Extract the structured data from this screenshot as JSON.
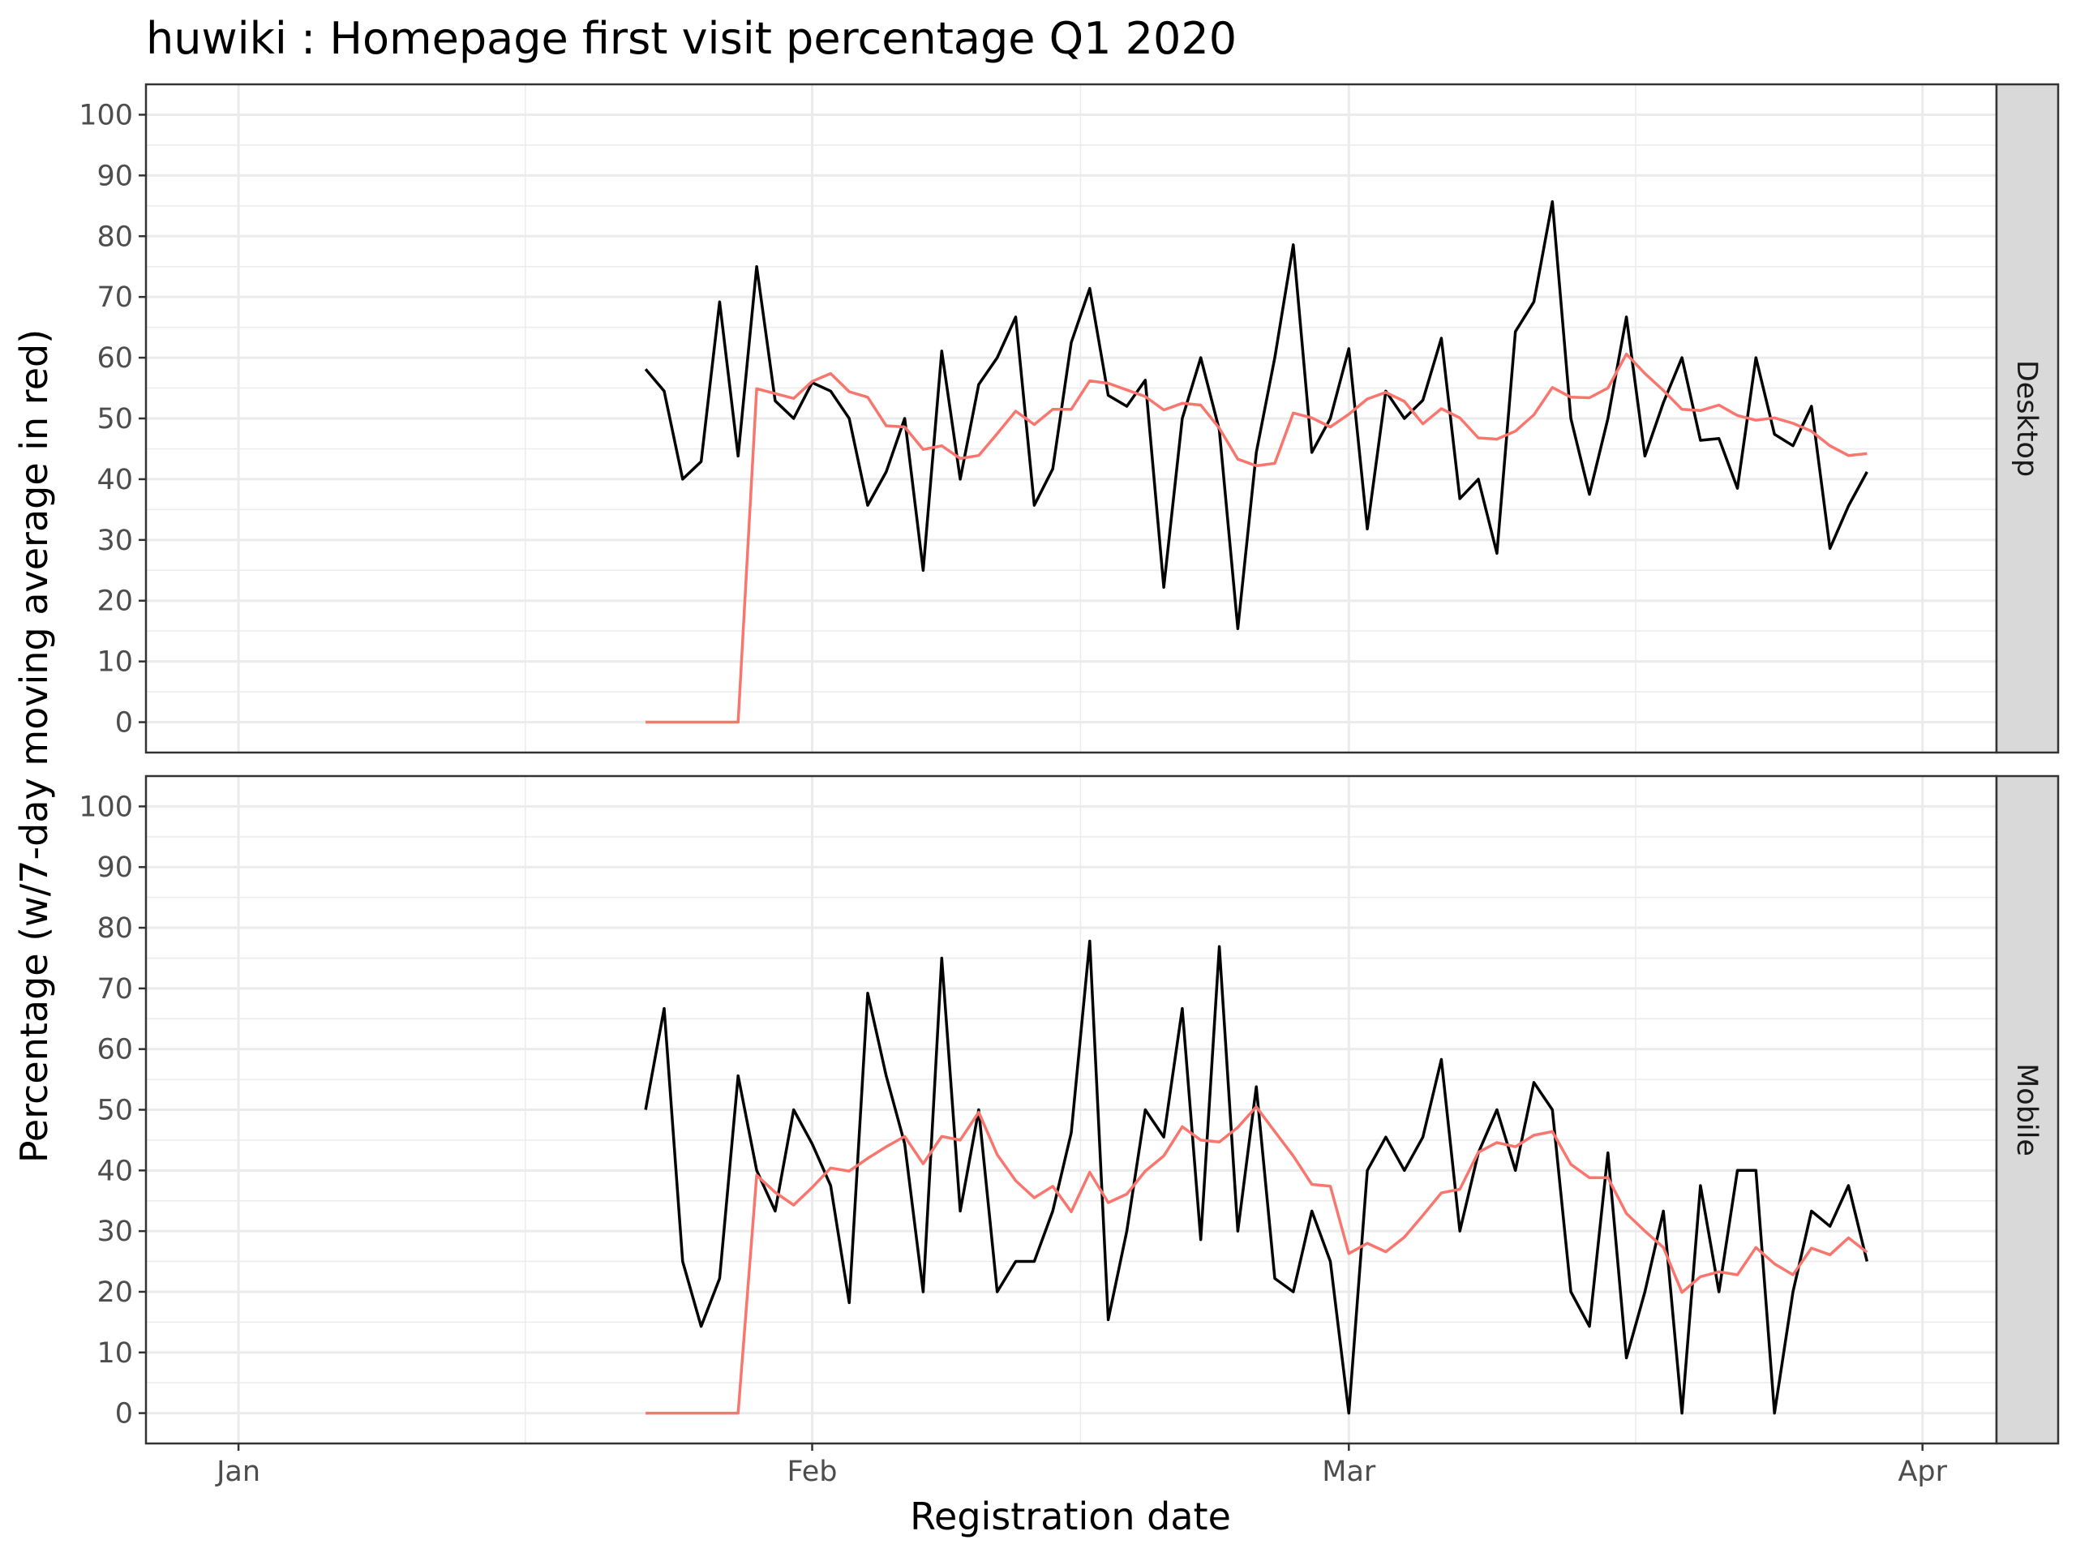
{
  "chart_data": {
    "type": "line",
    "title": "huwiki : Homepage first visit percentage Q1 2020",
    "xlabel": "Registration date",
    "ylabel": "Percentage (w/7-day moving average in red)",
    "x_range": [
      "2019-12-27",
      "2020-04-05"
    ],
    "x_ticks": [
      {
        "date": "2020-01-01",
        "label": "Jan"
      },
      {
        "date": "2020-02-01",
        "label": "Feb"
      },
      {
        "date": "2020-03-01",
        "label": "Mar"
      },
      {
        "date": "2020-04-01",
        "label": "Apr"
      }
    ],
    "ylim": [
      -5,
      105
    ],
    "y_ticks": [
      0,
      10,
      20,
      30,
      40,
      50,
      60,
      70,
      80,
      90,
      100
    ],
    "grid": true,
    "colors": {
      "raw": "#000000",
      "moving_average": "#f8766d"
    },
    "start_date": "2020-01-23",
    "panels": [
      {
        "facet": "Desktop",
        "series": [
          {
            "values": [
              58.1,
              54.5,
              40,
              42.9,
              69.2,
              43.8,
              75,
              52.9,
              50,
              55.9,
              54.5,
              50,
              35.7,
              41.2,
              50,
              25,
              61.1,
              40,
              55.6,
              60,
              66.7,
              35.7,
              41.7,
              62.5,
              71.4,
              53.8,
              52,
              56.3,
              22.2,
              50,
              60,
              48.1,
              15.4,
              44.4,
              60,
              78.6,
              44.4,
              50,
              61.5,
              31.8,
              54.5,
              50,
              53,
              63.2,
              36.8,
              40,
              27.8,
              64.3,
              69.2,
              85.7,
              50,
              37.5,
              50,
              66.7,
              43.8,
              52.6,
              60,
              46.4,
              46.7,
              38.5,
              60,
              47.4,
              45.5,
              52,
              28.6,
              35.6,
              41.2
            ]
          },
          {
            "values": [
              0,
              0,
              0,
              0,
              0,
              0,
              54.9,
              54.1,
              53.3,
              56.1,
              57.4,
              54.4,
              53.5,
              48.8,
              48.6,
              44.9,
              45.5,
              43.4,
              43.9,
              47.5,
              51.2,
              49,
              51.5,
              51.5,
              56.2,
              55.8,
              54.7,
              53.6,
              51.4,
              52.5,
              52.2,
              48.4,
              43.3,
              42.2,
              42.6,
              50.9,
              50.1,
              48.6,
              50.7,
              53.2,
              54.3,
              52.8,
              49.1,
              51.6,
              50.1,
              46.8,
              46.6,
              47.9,
              50.6,
              55.1,
              53.5,
              53.4,
              55,
              60.6,
              57.4,
              54.6,
              51.5,
              51.3,
              52.2,
              50.5,
              49.7,
              50.1,
              49.2,
              47.9,
              45.5,
              43.9,
              44.2
            ]
          }
        ]
      },
      {
        "facet": "Mobile",
        "series": [
          {
            "values": [
              50,
              66.7,
              25,
              14.3,
              22.2,
              55.6,
              40,
              33.3,
              50,
              44.4,
              37.5,
              18.2,
              69.2,
              55.6,
              44.4,
              20,
              75,
              33.3,
              50,
              20,
              25,
              25,
              33.3,
              46.2,
              77.8,
              15.4,
              30,
              50,
              45.5,
              66.7,
              28.6,
              76.9,
              30,
              53.8,
              22.2,
              20,
              33.3,
              25,
              0,
              40,
              45.5,
              40,
              45.5,
              58.3,
              30,
              42.9,
              50,
              40,
              54.5,
              50,
              20,
              14.3,
              42.9,
              9.1,
              20,
              33.3,
              0,
              37.5,
              20,
              40,
              40,
              0,
              20,
              33.3,
              30.8,
              37.5,
              25
            ]
          },
          {
            "values": [
              0,
              0,
              0,
              0,
              0,
              0,
              39.2,
              36.4,
              34.3,
              37.2,
              40.4,
              39.9,
              42,
              43.9,
              45.6,
              41.1,
              45.6,
              45,
              49.6,
              42.6,
              38.3,
              35.5,
              37.4,
              33.2,
              39.7,
              34.7,
              36.1,
              39.9,
              42.4,
              47.2,
              45,
              44.7,
              47.1,
              50.5,
              46.4,
              42.4,
              37.7,
              37.4,
              26.3,
              28,
              26.6,
              29,
              32.6,
              36.3,
              36.9,
              43,
              44.6,
              43.9,
              45.8,
              46.4,
              41,
              38.8,
              38.8,
              32.9,
              30,
              27.3,
              19.9,
              22.5,
              23.3,
              22.8,
              27.3,
              24.6,
              22.8,
              27.2,
              26.1,
              28.9,
              26.5
            ]
          }
        ]
      }
    ]
  }
}
